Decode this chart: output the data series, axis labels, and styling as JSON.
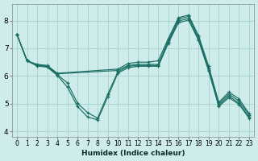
{
  "xlabel": "Humidex (Indice chaleur)",
  "background_color": "#ceecea",
  "grid_color": "#aad4d2",
  "line_color": "#1a6e64",
  "xlim": [
    -0.5,
    23.5
  ],
  "ylim": [
    3.8,
    8.6
  ],
  "xticks": [
    0,
    1,
    2,
    3,
    4,
    5,
    6,
    7,
    8,
    9,
    10,
    11,
    12,
    13,
    14,
    15,
    16,
    17,
    18,
    19,
    20,
    21,
    22,
    23
  ],
  "yticks": [
    4,
    5,
    6,
    7,
    8
  ],
  "lines": [
    {
      "x": [
        0,
        1,
        2,
        3,
        4,
        10,
        11,
        12,
        13,
        14,
        15,
        16,
        17,
        18,
        19,
        20,
        21,
        22,
        23
      ],
      "y": [
        7.5,
        6.55,
        6.42,
        6.38,
        6.1,
        6.25,
        6.45,
        6.5,
        6.5,
        6.55,
        7.35,
        8.1,
        8.2,
        7.45,
        6.35,
        5.05,
        5.42,
        5.18,
        4.65
      ]
    },
    {
      "x": [
        0,
        1,
        2,
        3,
        4,
        10,
        11,
        12,
        13,
        14,
        15,
        16,
        17,
        18,
        19,
        20,
        21,
        22,
        23
      ],
      "y": [
        7.5,
        6.55,
        6.4,
        6.36,
        6.08,
        6.2,
        6.38,
        6.42,
        6.42,
        6.42,
        7.28,
        8.05,
        8.15,
        7.4,
        6.28,
        5.0,
        5.35,
        5.1,
        4.6
      ]
    },
    {
      "x": [
        0,
        1,
        2,
        3,
        4,
        5,
        6,
        7,
        8,
        9,
        10,
        11,
        12,
        13,
        14,
        15,
        16,
        17,
        18,
        19,
        20,
        21,
        22,
        23
      ],
      "y": [
        7.5,
        6.55,
        6.38,
        6.34,
        6.05,
        5.75,
        5.02,
        4.68,
        4.48,
        5.35,
        6.15,
        6.35,
        6.38,
        6.38,
        6.38,
        7.22,
        7.98,
        8.08,
        7.32,
        6.22,
        4.95,
        5.28,
        5.02,
        4.52
      ]
    },
    {
      "x": [
        0,
        1,
        2,
        3,
        4,
        5,
        6,
        7,
        8,
        9,
        10,
        11,
        12,
        13,
        14,
        15,
        16,
        17,
        18,
        19,
        20,
        21,
        22,
        23
      ],
      "y": [
        7.5,
        6.55,
        6.36,
        6.32,
        6.02,
        5.6,
        4.9,
        4.52,
        4.42,
        5.25,
        6.1,
        6.3,
        6.35,
        6.35,
        6.35,
        7.18,
        7.92,
        8.02,
        7.28,
        6.18,
        4.9,
        5.22,
        4.98,
        4.48
      ]
    }
  ]
}
